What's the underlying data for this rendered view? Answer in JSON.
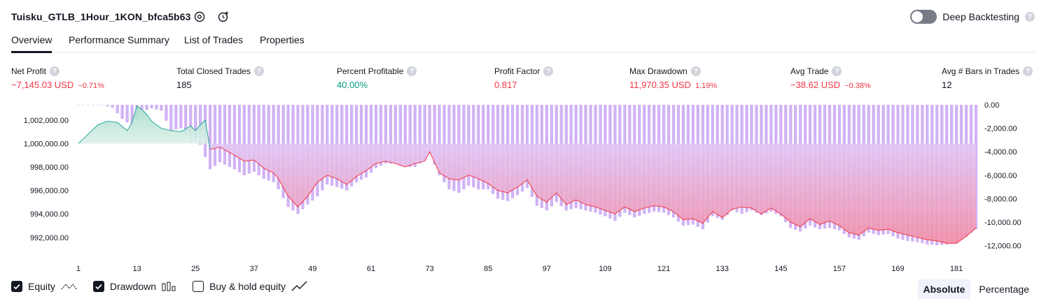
{
  "header": {
    "title": "Tuisku_GTLB_1Hour_1KON_bfca5b63",
    "deep_backtesting_label": "Deep Backtesting",
    "deep_backtesting_enabled": false,
    "help_glyph": "?"
  },
  "tabs": [
    {
      "label": "Overview",
      "active": true
    },
    {
      "label": "Performance Summary",
      "active": false
    },
    {
      "label": "List of Trades",
      "active": false
    },
    {
      "label": "Properties",
      "active": false
    }
  ],
  "metrics": [
    {
      "label": "Net Profit",
      "value": "−7,145.03 USD",
      "pct": "−0.71%",
      "color": "red"
    },
    {
      "label": "Total Closed Trades",
      "value": "185",
      "pct": "",
      "color": "dark"
    },
    {
      "label": "Percent Profitable",
      "value": "40.00%",
      "pct": "",
      "color": "green"
    },
    {
      "label": "Profit Factor",
      "value": "0.817",
      "pct": "",
      "color": "red"
    },
    {
      "label": "Max Drawdown",
      "value": "11,970.35 USD",
      "pct": "1.19%",
      "color": "red"
    },
    {
      "label": "Avg Trade",
      "value": "−38.62 USD",
      "pct": "−0.38%",
      "color": "red"
    },
    {
      "label": "Avg # Bars in Trades",
      "value": "12",
      "pct": "",
      "color": "dark"
    }
  ],
  "colors": {
    "equity_up_line": "#26a69a",
    "equity_down_line": "#f23645",
    "drawdown_bar": "#d1b3f5",
    "text_red": "#f23645",
    "text_green": "#089981"
  },
  "chart_data": {
    "type": "line",
    "x_ticks": [
      1,
      13,
      25,
      37,
      49,
      61,
      73,
      85,
      97,
      109,
      121,
      133,
      145,
      157,
      169,
      181
    ],
    "left_axis": {
      "label": "Equity",
      "ticks": [
        "1,002,000.00",
        "1,000,000.00",
        "998,000.00",
        "996,000.00",
        "994,000.00",
        "992,000.00"
      ],
      "ylim": [
        990800,
        1003300
      ]
    },
    "right_axis": {
      "label": "Drawdown",
      "ticks": [
        "0.00",
        "-2,000.00",
        "-4,000.00",
        "-6,000.00",
        "-8,000.00",
        "-10,000.00",
        "-12,000.00"
      ],
      "ylim": [
        -12500,
        0
      ]
    },
    "equity_keypoints": [
      [
        1,
        1000000
      ],
      [
        3,
        1000800
      ],
      [
        5,
        1001600
      ],
      [
        7,
        1001900
      ],
      [
        9,
        1001800
      ],
      [
        11,
        1001100
      ],
      [
        12,
        1001800
      ],
      [
        13,
        1003200
      ],
      [
        14,
        1002900
      ],
      [
        15,
        1002500
      ],
      [
        16,
        1001900
      ],
      [
        18,
        1001300
      ],
      [
        20,
        1001100
      ],
      [
        22,
        1001000
      ],
      [
        24,
        1001500
      ],
      [
        25,
        1001100
      ],
      [
        26,
        1001600
      ],
      [
        27,
        1002000
      ],
      [
        28,
        999500
      ],
      [
        30,
        999700
      ],
      [
        33,
        999000
      ],
      [
        35,
        998500
      ],
      [
        37,
        998600
      ],
      [
        39,
        997900
      ],
      [
        41,
        997500
      ],
      [
        42,
        997000
      ],
      [
        44,
        995500
      ],
      [
        46,
        994600
      ],
      [
        48,
        995500
      ],
      [
        50,
        996700
      ],
      [
        52,
        997300
      ],
      [
        54,
        997000
      ],
      [
        56,
        996500
      ],
      [
        58,
        997200
      ],
      [
        60,
        997700
      ],
      [
        62,
        998300
      ],
      [
        64,
        998500
      ],
      [
        66,
        998300
      ],
      [
        68,
        998000
      ],
      [
        70,
        998300
      ],
      [
        72,
        998500
      ],
      [
        73,
        999300
      ],
      [
        75,
        997500
      ],
      [
        77,
        997000
      ],
      [
        79,
        996900
      ],
      [
        81,
        997300
      ],
      [
        83,
        997000
      ],
      [
        85,
        996600
      ],
      [
        87,
        996000
      ],
      [
        89,
        995800
      ],
      [
        91,
        996300
      ],
      [
        93,
        996900
      ],
      [
        95,
        995500
      ],
      [
        97,
        995000
      ],
      [
        99,
        995800
      ],
      [
        101,
        994800
      ],
      [
        103,
        995200
      ],
      [
        105,
        994800
      ],
      [
        107,
        994600
      ],
      [
        109,
        994300
      ],
      [
        111,
        994000
      ],
      [
        113,
        994600
      ],
      [
        115,
        994200
      ],
      [
        117,
        994500
      ],
      [
        119,
        994700
      ],
      [
        121,
        994600
      ],
      [
        123,
        994200
      ],
      [
        125,
        993500
      ],
      [
        127,
        993600
      ],
      [
        129,
        993200
      ],
      [
        131,
        994200
      ],
      [
        133,
        993700
      ],
      [
        135,
        994400
      ],
      [
        137,
        994600
      ],
      [
        139,
        994500
      ],
      [
        141,
        994000
      ],
      [
        143,
        994500
      ],
      [
        145,
        994000
      ],
      [
        147,
        993300
      ],
      [
        149,
        992900
      ],
      [
        151,
        993600
      ],
      [
        153,
        993100
      ],
      [
        155,
        993400
      ],
      [
        157,
        993000
      ],
      [
        159,
        992400
      ],
      [
        161,
        992200
      ],
      [
        163,
        992800
      ],
      [
        165,
        992600
      ],
      [
        167,
        992700
      ],
      [
        169,
        992400
      ],
      [
        171,
        992200
      ],
      [
        173,
        992000
      ],
      [
        175,
        991800
      ],
      [
        177,
        991700
      ],
      [
        179,
        991500
      ],
      [
        181,
        991500
      ],
      [
        183,
        992100
      ],
      [
        185,
        992800
      ]
    ],
    "drawdown_keypoints": [
      [
        1,
        0
      ],
      [
        6,
        0
      ],
      [
        8,
        -250
      ],
      [
        10,
        -1200
      ],
      [
        12,
        -1800
      ],
      [
        14,
        -600
      ],
      [
        16,
        -300
      ],
      [
        18,
        -500
      ],
      [
        20,
        -2200
      ],
      [
        22,
        -2000
      ],
      [
        24,
        -3200
      ],
      [
        26,
        -3400
      ],
      [
        28,
        -5500
      ],
      [
        30,
        -4900
      ],
      [
        33,
        -5500
      ],
      [
        35,
        -6000
      ],
      [
        37,
        -5700
      ],
      [
        39,
        -6300
      ],
      [
        41,
        -6600
      ],
      [
        42,
        -7200
      ],
      [
        44,
        -8700
      ],
      [
        46,
        -9300
      ],
      [
        48,
        -8500
      ],
      [
        50,
        -7800
      ],
      [
        52,
        -6800
      ],
      [
        54,
        -7000
      ],
      [
        56,
        -7300
      ],
      [
        58,
        -6600
      ],
      [
        60,
        -6200
      ],
      [
        62,
        -5400
      ],
      [
        64,
        -5000
      ],
      [
        66,
        -5000
      ],
      [
        68,
        -5300
      ],
      [
        70,
        -5300
      ],
      [
        72,
        -4700
      ],
      [
        73,
        -4200
      ],
      [
        75,
        -6000
      ],
      [
        77,
        -7200
      ],
      [
        79,
        -7500
      ],
      [
        81,
        -6900
      ],
      [
        83,
        -7200
      ],
      [
        85,
        -7200
      ],
      [
        87,
        -8000
      ],
      [
        89,
        -8200
      ],
      [
        91,
        -7700
      ],
      [
        93,
        -7100
      ],
      [
        95,
        -8600
      ],
      [
        97,
        -9000
      ],
      [
        99,
        -8300
      ],
      [
        101,
        -9000
      ],
      [
        103,
        -8800
      ],
      [
        105,
        -9000
      ],
      [
        107,
        -9200
      ],
      [
        109,
        -9500
      ],
      [
        111,
        -9900
      ],
      [
        113,
        -9200
      ],
      [
        115,
        -9600
      ],
      [
        117,
        -9300
      ],
      [
        119,
        -9100
      ],
      [
        121,
        -9200
      ],
      [
        123,
        -9600
      ],
      [
        125,
        -10300
      ],
      [
        127,
        -10200
      ],
      [
        129,
        -10600
      ],
      [
        131,
        -9500
      ],
      [
        133,
        -9800
      ],
      [
        135,
        -9000
      ],
      [
        137,
        -9300
      ],
      [
        139,
        -9000
      ],
      [
        141,
        -9400
      ],
      [
        143,
        -9100
      ],
      [
        145,
        -9500
      ],
      [
        147,
        -10500
      ],
      [
        149,
        -10800
      ],
      [
        151,
        -10300
      ],
      [
        153,
        -10600
      ],
      [
        155,
        -10500
      ],
      [
        157,
        -10700
      ],
      [
        159,
        -11300
      ],
      [
        161,
        -11500
      ],
      [
        163,
        -10900
      ],
      [
        165,
        -11100
      ],
      [
        167,
        -11000
      ],
      [
        169,
        -11400
      ],
      [
        171,
        -11600
      ],
      [
        173,
        -11700
      ],
      [
        175,
        -11900
      ],
      [
        177,
        -11970
      ],
      [
        179,
        -11900
      ],
      [
        181,
        -11800
      ],
      [
        183,
        -11200
      ],
      [
        185,
        -10600
      ]
    ],
    "n_trades": 185
  },
  "legend": [
    {
      "label": "Equity",
      "checked": true,
      "icon": "equity-line-icon"
    },
    {
      "label": "Drawdown",
      "checked": true,
      "icon": "drawdown-bars-icon"
    },
    {
      "label": "Buy & hold equity",
      "checked": false,
      "icon": "buy-hold-line-icon"
    }
  ],
  "view_modes": [
    {
      "label": "Absolute",
      "active": true
    },
    {
      "label": "Percentage",
      "active": false
    }
  ]
}
